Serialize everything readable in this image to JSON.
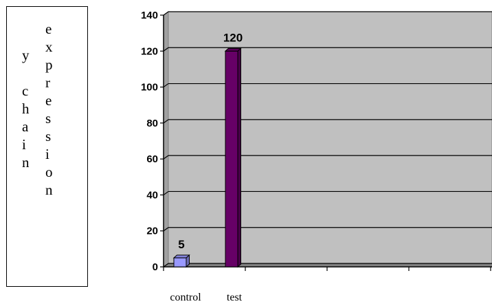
{
  "ylabel_box": {
    "column_left": [
      "y",
      "",
      "c",
      "h",
      "a",
      "i",
      "n"
    ],
    "column_right": [
      "e",
      "x",
      "p",
      "r",
      "e",
      "s",
      "s",
      "i",
      "o",
      "n"
    ]
  },
  "chart_data": {
    "type": "bar",
    "categories": [
      "control",
      "test"
    ],
    "values": [
      5,
      120
    ],
    "data_labels": [
      "5",
      "120"
    ],
    "ylim": [
      0,
      140
    ],
    "y_ticks": [
      "0",
      "20",
      "40",
      "60",
      "80",
      "100",
      "120",
      "140"
    ],
    "title": "",
    "xlabel": "",
    "ylabel": "y chain expression",
    "grid": true,
    "colors": {
      "control": "#9999ff",
      "test": "#660066",
      "plot_bg": "#c0c0c0"
    }
  }
}
